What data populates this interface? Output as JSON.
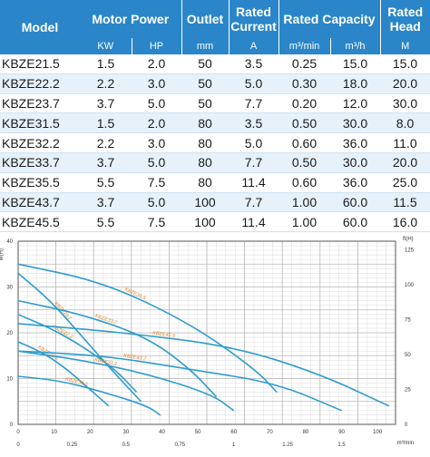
{
  "table": {
    "headers": {
      "model": "Model",
      "motor_power": "Motor Power",
      "outlet": "Outlet",
      "rated_current": "Rated Current",
      "rated_capacity": "Rated Capacity",
      "rated_head": "Rated Head"
    },
    "units": {
      "kw": "KW",
      "hp": "HP",
      "mm": "mm",
      "a": "A",
      "m3min": "m³/min",
      "m3h": "m³/h",
      "m": "M"
    },
    "rows": [
      {
        "model": "KBZE21.5",
        "kw": "1.5",
        "hp": "2.0",
        "outlet": "50",
        "current": "3.5",
        "m3min": "0.25",
        "m3h": "15.0",
        "head": "15.0"
      },
      {
        "model": "KBZE22.2",
        "kw": "2.2",
        "hp": "3.0",
        "outlet": "50",
        "current": "5.0",
        "m3min": "0.30",
        "m3h": "18.0",
        "head": "20.0"
      },
      {
        "model": "KBZE23.7",
        "kw": "3.7",
        "hp": "5.0",
        "outlet": "50",
        "current": "7.7",
        "m3min": "0.20",
        "m3h": "12.0",
        "head": "30.0"
      },
      {
        "model": "KBZE31.5",
        "kw": "1.5",
        "hp": "2.0",
        "outlet": "80",
        "current": "3.5",
        "m3min": "0.50",
        "m3h": "30.0",
        "head": "8.0"
      },
      {
        "model": "KBZE32.2",
        "kw": "2.2",
        "hp": "3.0",
        "outlet": "80",
        "current": "5.0",
        "m3min": "0.60",
        "m3h": "36.0",
        "head": "11.0"
      },
      {
        "model": "KBZE33.7",
        "kw": "3.7",
        "hp": "5.0",
        "outlet": "80",
        "current": "7.7",
        "m3min": "0.50",
        "m3h": "30.0",
        "head": "20.0"
      },
      {
        "model": "KBZE35.5",
        "kw": "5.5",
        "hp": "7.5",
        "outlet": "80",
        "current": "11.4",
        "m3min": "0.60",
        "m3h": "36.0",
        "head": "25.0"
      },
      {
        "model": "KBZE43.7",
        "kw": "3.7",
        "hp": "5.0",
        "outlet": "100",
        "current": "7.7",
        "m3min": "1.00",
        "m3h": "60.0",
        "head": "11.5"
      },
      {
        "model": "KBZE45.5",
        "kw": "5.5",
        "hp": "7.5",
        "outlet": "100",
        "current": "11.4",
        "m3min": "1.00",
        "m3h": "60.0",
        "head": "16.0"
      }
    ]
  },
  "colors": {
    "header_bg": "#2a86c8",
    "curve": "#2f9ccf",
    "label": "#d9822b",
    "grid": "#b8b8b8"
  },
  "chart_data": {
    "type": "line",
    "left_unit": "M(H)",
    "right_unit": "ft(H)",
    "bottom_unit": "m³/min",
    "left_ticks": [
      "0",
      "10",
      "20",
      "30",
      "40"
    ],
    "right_ticks": [
      "0",
      "25",
      "50",
      "75",
      "100",
      "125"
    ],
    "top_x_ticks": [
      "0",
      "10",
      "20",
      "30",
      "40",
      "50",
      "60",
      "70",
      "80",
      "90",
      "100"
    ],
    "bottom_x_ticks": [
      "0",
      "0.25",
      "0.5",
      "0.75",
      "1",
      "1.25",
      "1.5"
    ],
    "xlim": [
      0,
      1.75
    ],
    "ylim": [
      0,
      40
    ],
    "series": [
      {
        "name": "KBZE21.5",
        "x": [
          0,
          0.1,
          0.2,
          0.3,
          0.42
        ],
        "y": [
          18,
          16,
          13,
          9,
          4
        ]
      },
      {
        "name": "KBZE22.2",
        "x": [
          0,
          0.15,
          0.3,
          0.45,
          0.55
        ],
        "y": [
          24,
          21,
          17,
          12,
          7
        ]
      },
      {
        "name": "KBZE23.7",
        "x": [
          0,
          0.15,
          0.3,
          0.45,
          0.57
        ],
        "y": [
          33,
          27,
          19,
          11,
          5
        ]
      },
      {
        "name": "KBZE31.5",
        "x": [
          0,
          0.2,
          0.4,
          0.6,
          0.66
        ],
        "y": [
          10.5,
          9.5,
          7,
          4,
          2
        ]
      },
      {
        "name": "KBZE32.2",
        "x": [
          0,
          0.3,
          0.6,
          0.9,
          1.0
        ],
        "y": [
          16,
          14,
          11,
          6.5,
          3
        ]
      },
      {
        "name": "KBZE33.7",
        "x": [
          0,
          0.3,
          0.6,
          0.8,
          0.92
        ],
        "y": [
          27,
          24,
          19,
          12,
          6
        ]
      },
      {
        "name": "KBZE35.5",
        "x": [
          0,
          0.4,
          0.8,
          1.1,
          1.2
        ],
        "y": [
          35,
          31,
          22,
          12,
          7
        ]
      },
      {
        "name": "KBZE43.7",
        "x": [
          0,
          0.4,
          0.8,
          1.2,
          1.5
        ],
        "y": [
          16,
          15,
          12,
          9,
          3
        ]
      },
      {
        "name": "KBZE45.5",
        "x": [
          0,
          0.5,
          1.0,
          1.4,
          1.72
        ],
        "y": [
          22,
          20,
          17,
          11,
          4
        ]
      }
    ]
  }
}
